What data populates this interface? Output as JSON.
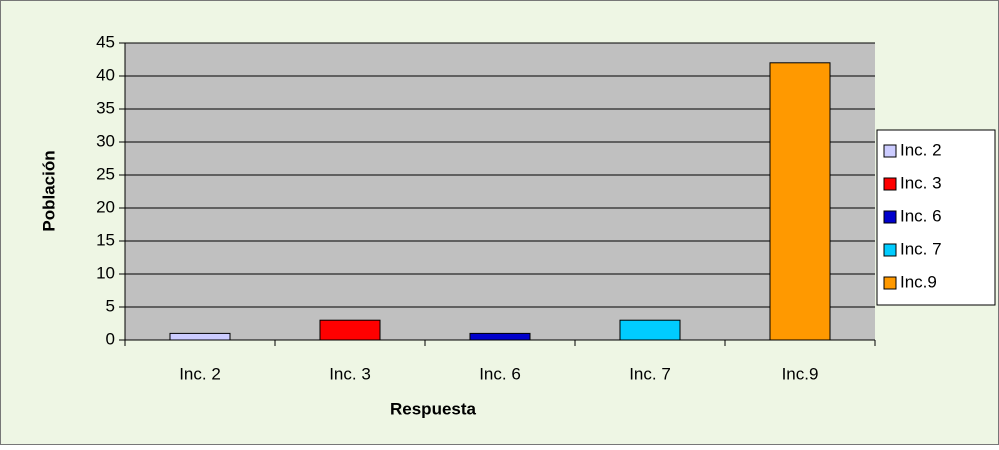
{
  "chart_data": {
    "type": "bar",
    "x_label": "Respuesta",
    "y_label": "Población",
    "categories": [
      "Inc. 2",
      "Inc. 3",
      "Inc. 6",
      "Inc. 7",
      "Inc.9"
    ],
    "values": [
      1,
      3,
      1,
      3,
      42
    ],
    "colors": [
      "#ccccff",
      "#ff0000",
      "#0000cc",
      "#00ccff",
      "#ff9900"
    ],
    "ylim": [
      0,
      45
    ],
    "yticks": [
      0,
      5,
      10,
      15,
      20,
      25,
      30,
      35,
      40,
      45
    ],
    "grid": true,
    "legend": "right"
  }
}
